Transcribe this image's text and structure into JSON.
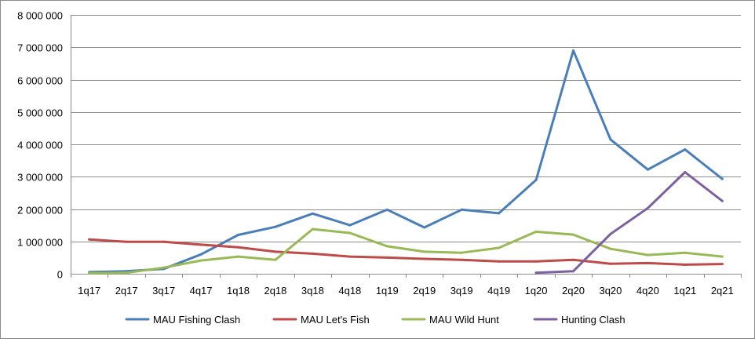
{
  "chart_data": {
    "type": "line",
    "title": "",
    "xlabel": "",
    "ylabel": "",
    "categories": [
      "1q17",
      "2q17",
      "3q17",
      "4q17",
      "1q18",
      "2q18",
      "3q18",
      "4q18",
      "1q19",
      "2q19",
      "3q19",
      "4q19",
      "1q20",
      "2q20",
      "3q20",
      "4q20",
      "1q21",
      "2q21"
    ],
    "ylim": [
      0,
      8000000
    ],
    "yticks": [
      0,
      1000000,
      2000000,
      3000000,
      4000000,
      5000000,
      6000000,
      7000000,
      8000000
    ],
    "ytick_labels": [
      "0",
      "1 000 000",
      "2 000 000",
      "3 000 000",
      "4 000 000",
      "5 000 000",
      "6 000 000",
      "7 000 000",
      "8 000 000"
    ],
    "grid": true,
    "legend_position": "bottom",
    "series": [
      {
        "name": "MAU Fishing Clash",
        "color": "#4a7ebb",
        "values": [
          50000,
          80000,
          150000,
          600000,
          1200000,
          1450000,
          1860000,
          1500000,
          1980000,
          1430000,
          1980000,
          1870000,
          2900000,
          6900000,
          4150000,
          3220000,
          3840000,
          2930000
        ]
      },
      {
        "name": "MAU Let's Fish",
        "color": "#be4b48",
        "values": [
          1060000,
          990000,
          990000,
          900000,
          820000,
          680000,
          620000,
          530000,
          500000,
          460000,
          430000,
          380000,
          380000,
          430000,
          310000,
          330000,
          280000,
          300000
        ]
      },
      {
        "name": "MAU Wild Hunt",
        "color": "#98b954",
        "values": [
          20000,
          30000,
          190000,
          410000,
          530000,
          430000,
          1380000,
          1260000,
          850000,
          680000,
          650000,
          800000,
          1300000,
          1210000,
          770000,
          580000,
          650000,
          530000
        ]
      },
      {
        "name": "Hunting Clash",
        "color": "#7d60a0",
        "values": [
          null,
          null,
          null,
          null,
          null,
          null,
          null,
          null,
          null,
          null,
          null,
          null,
          30000,
          80000,
          1230000,
          2030000,
          3140000,
          2250000
        ]
      }
    ]
  }
}
